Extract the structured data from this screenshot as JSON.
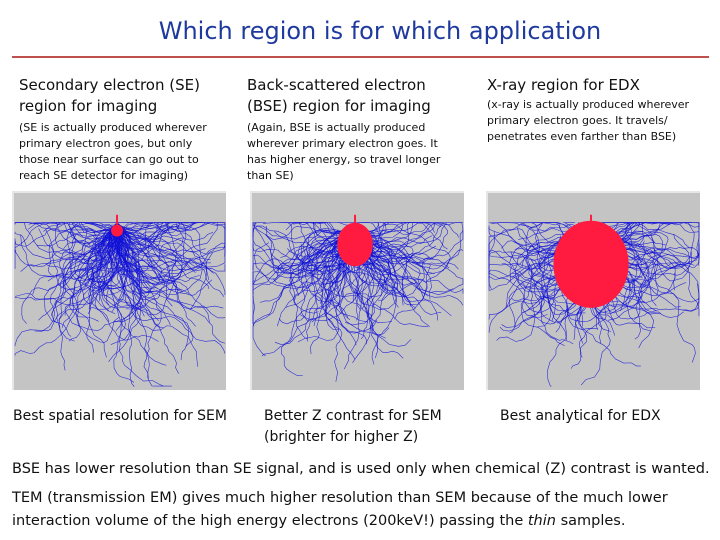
{
  "title": "Which region is for which application",
  "columns": [
    {
      "heading_line1": "Secondary electron (SE)",
      "heading_line2": "region for imaging",
      "note": [
        "(SE is actually produced wherever",
        "primary electron goes, but only",
        "those near surface can go out to",
        "reach SE detector for imaging)"
      ],
      "caption_line1": "Best spatial resolution for SEM",
      "caption_line2": "",
      "region_size": "small"
    },
    {
      "heading_line1": "Back-scattered electron",
      "heading_line2": "(BSE) region for imaging",
      "note": [
        "(Again, BSE is actually produced",
        "wherever primary electron goes. It",
        "has higher energy, so travel longer",
        "than SE)"
      ],
      "caption_line1": "Better Z contrast for SEM",
      "caption_line2": "(brighter for higher Z)",
      "region_size": "medium"
    },
    {
      "heading_line1": "X-ray region for EDX",
      "heading_line2": "",
      "note": [
        "(x-ray is actually produced wherever",
        "primary electron goes. It travels/",
        "penetrates even farther than BSE)"
      ],
      "caption_line1": "Best analytical for EDX",
      "caption_line2": "",
      "region_size": "large"
    }
  ],
  "paragraph1": "BSE has lower resolution than SE signal, and is used only when chemical (Z) contrast is wanted.",
  "paragraph2_line1": "TEM (transmission EM) gives much higher resolution than SEM because of the much lower",
  "paragraph2_line2_pre": "interaction volume of the high energy electrons (200keV!) passing the ",
  "paragraph2_line2_italic": "thin",
  "paragraph2_line2_post": " samples.",
  "colors": {
    "title": "#1f3a9e",
    "rule": "#c0504d",
    "trajectories": "#1010d8",
    "region": "#ff1a40",
    "sample_bg": "#c4c4c4"
  }
}
